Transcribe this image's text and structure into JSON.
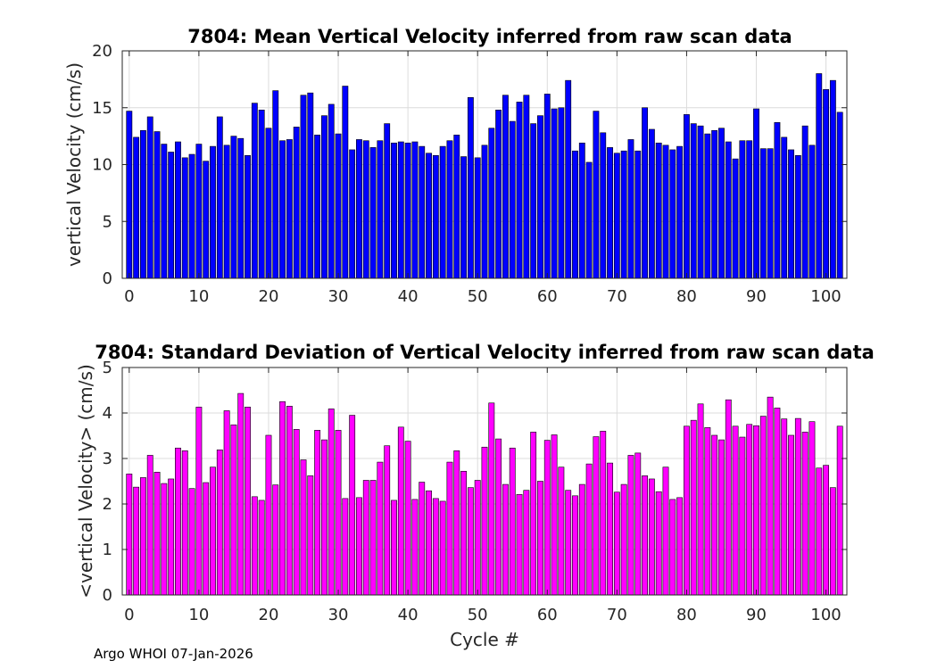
{
  "chart_data": [
    {
      "type": "bar",
      "title": "7804: Mean Vertical Velocity inferred from raw scan data",
      "xlabel": "",
      "ylabel": "vertical Velocity (cm/s)",
      "xlim": [
        -1,
        103
      ],
      "ylim": [
        0,
        20
      ],
      "xticks": [
        0,
        10,
        20,
        30,
        40,
        50,
        60,
        70,
        80,
        90,
        100
      ],
      "yticks": [
        0,
        5,
        10,
        15,
        20
      ],
      "grid": true,
      "color": "#0000ff",
      "x": [
        0,
        1,
        2,
        3,
        4,
        5,
        6,
        7,
        8,
        9,
        10,
        11,
        12,
        13,
        14,
        15,
        16,
        17,
        18,
        19,
        20,
        21,
        22,
        23,
        24,
        25,
        26,
        27,
        28,
        29,
        30,
        31,
        32,
        33,
        34,
        35,
        36,
        37,
        38,
        39,
        40,
        41,
        42,
        43,
        44,
        45,
        46,
        47,
        48,
        49,
        50,
        51,
        52,
        53,
        54,
        55,
        56,
        57,
        58,
        59,
        60,
        61,
        62,
        63,
        64,
        65,
        66,
        67,
        68,
        69,
        70,
        71,
        72,
        73,
        74,
        75,
        76,
        77,
        78,
        79,
        80,
        81,
        82,
        83,
        84,
        85,
        86,
        87,
        88,
        89,
        90,
        91,
        92,
        93,
        94,
        95,
        96,
        97,
        98,
        99,
        100,
        101,
        102
      ],
      "values": [
        14.7,
        12.4,
        13.0,
        14.2,
        12.9,
        11.8,
        11.1,
        12.0,
        10.6,
        10.9,
        11.8,
        10.3,
        11.6,
        14.2,
        11.7,
        12.5,
        12.3,
        10.8,
        15.4,
        14.8,
        13.2,
        16.5,
        12.1,
        12.2,
        13.3,
        16.1,
        16.3,
        12.6,
        14.3,
        15.3,
        12.7,
        16.9,
        11.3,
        12.2,
        12.1,
        11.5,
        12.1,
        13.6,
        11.9,
        12.0,
        11.9,
        12.0,
        11.6,
        11.0,
        10.8,
        11.6,
        12.1,
        12.6,
        10.7,
        15.9,
        10.6,
        11.7,
        13.2,
        14.8,
        16.1,
        13.8,
        15.5,
        16.1,
        13.6,
        14.3,
        16.2,
        14.9,
        15.0,
        17.4,
        11.2,
        11.9,
        10.2,
        14.7,
        12.8,
        11.5,
        11.0,
        11.2,
        12.2,
        11.2,
        15.0,
        13.1,
        11.9,
        11.7,
        11.3,
        11.6,
        14.4,
        13.6,
        13.4,
        12.7,
        13.0,
        13.2,
        12.0,
        10.5,
        12.1,
        12.1,
        14.9,
        11.4,
        11.4,
        13.7,
        12.4,
        11.3,
        10.8,
        13.4,
        11.7,
        18.0,
        16.6,
        17.4,
        14.6
      ]
    },
    {
      "type": "bar",
      "title": "7804: Standard Deviation of Vertical Velocity inferred from raw scan data",
      "xlabel": "Cycle #",
      "ylabel": "<vertical Velocity> (cm/s)",
      "xlim": [
        -1,
        103
      ],
      "ylim": [
        0,
        5
      ],
      "xticks": [
        0,
        10,
        20,
        30,
        40,
        50,
        60,
        70,
        80,
        90,
        100
      ],
      "yticks": [
        0,
        1,
        2,
        3,
        4,
        5
      ],
      "grid": true,
      "color": "#ff00ff",
      "x": [
        0,
        1,
        2,
        3,
        4,
        5,
        6,
        7,
        8,
        9,
        10,
        11,
        12,
        13,
        14,
        15,
        16,
        17,
        18,
        19,
        20,
        21,
        22,
        23,
        24,
        25,
        26,
        27,
        28,
        29,
        30,
        31,
        32,
        33,
        34,
        35,
        36,
        37,
        38,
        39,
        40,
        41,
        42,
        43,
        44,
        45,
        46,
        47,
        48,
        49,
        50,
        51,
        52,
        53,
        54,
        55,
        56,
        57,
        58,
        59,
        60,
        61,
        62,
        63,
        64,
        65,
        66,
        67,
        68,
        69,
        70,
        71,
        72,
        73,
        74,
        75,
        76,
        77,
        78,
        79,
        80,
        81,
        82,
        83,
        84,
        85,
        86,
        87,
        88,
        89,
        90,
        91,
        92,
        93,
        94,
        95,
        96,
        97,
        98,
        99,
        100,
        101,
        102
      ],
      "values": [
        2.66,
        2.37,
        2.58,
        3.07,
        2.7,
        2.45,
        2.55,
        3.23,
        3.17,
        2.34,
        4.13,
        2.47,
        2.81,
        3.19,
        4.05,
        3.74,
        4.43,
        4.13,
        2.16,
        2.08,
        3.51,
        2.42,
        4.25,
        4.15,
        3.64,
        2.97,
        2.62,
        3.62,
        3.41,
        4.09,
        3.62,
        2.12,
        3.95,
        2.14,
        2.52,
        2.52,
        2.92,
        3.28,
        2.08,
        3.69,
        3.38,
        2.1,
        2.48,
        2.29,
        2.12,
        2.06,
        2.92,
        3.17,
        2.72,
        2.36,
        2.52,
        3.25,
        4.22,
        3.43,
        2.43,
        3.23,
        2.21,
        2.3,
        3.58,
        2.5,
        3.4,
        3.52,
        2.81,
        2.3,
        2.18,
        2.43,
        2.88,
        3.48,
        3.6,
        2.9,
        2.26,
        2.43,
        3.07,
        3.12,
        2.62,
        2.55,
        2.27,
        2.81,
        2.1,
        2.14,
        3.71,
        3.84,
        4.2,
        3.68,
        3.51,
        3.41,
        4.29,
        3.71,
        3.47,
        3.75,
        3.72,
        3.93,
        4.35,
        4.11,
        3.87,
        3.51,
        3.88,
        3.58,
        3.81,
        2.79,
        2.85,
        2.36,
        3.71
      ]
    }
  ],
  "footer": "Argo WHOI 07-Jan-2026"
}
